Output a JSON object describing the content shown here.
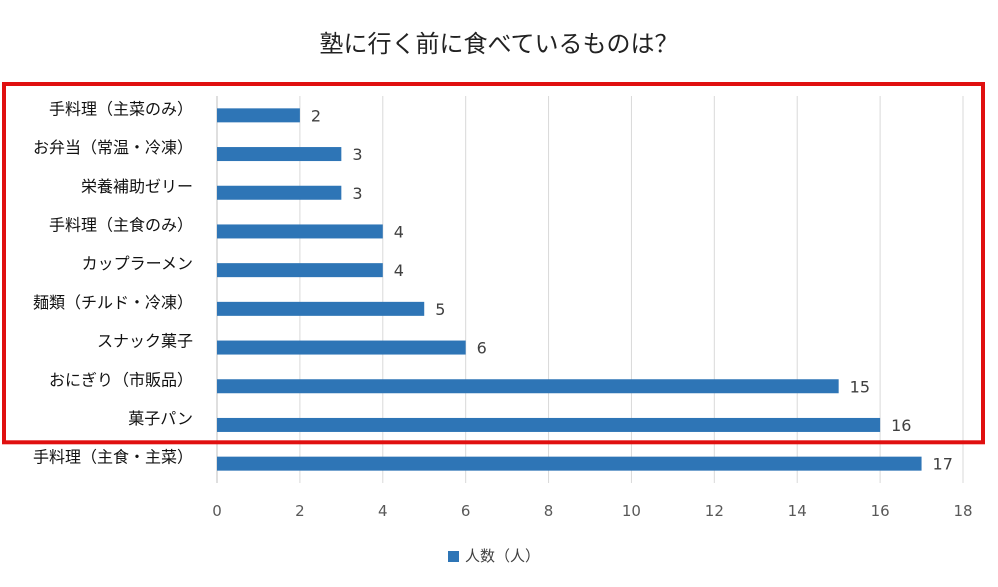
{
  "chart_data": {
    "type": "bar",
    "orientation": "horizontal",
    "title": "塾に行く前に食べているものは？",
    "categories": [
      "手料理（主菜のみ）",
      "お弁当（常温・冷凍）",
      "栄養補助ゼリー",
      "手料理（主食のみ）",
      "カップラーメン",
      "麺類（チルド・冷凍）",
      "スナック菓子",
      "おにぎり（市販品）",
      "菓子パン",
      "手料理（主食・主菜）"
    ],
    "series": [
      {
        "name": "人数（人）",
        "values": [
          2,
          3,
          3,
          4,
          4,
          5,
          6,
          15,
          16,
          17
        ]
      }
    ],
    "xlim": [
      0,
      18
    ],
    "xticks": [
      0,
      2,
      4,
      6,
      8,
      10,
      12,
      14,
      16,
      18
    ],
    "xlabel": "",
    "ylabel": "",
    "grid": true,
    "legend": "bottom",
    "data_labels": true,
    "colors": {
      "bar": "#2e75b6",
      "grid": "#d9d9d9",
      "highlight_box": "#e01010"
    },
    "annotation": {
      "type": "highlight-box",
      "category_from": 0,
      "category_to": 8
    }
  }
}
